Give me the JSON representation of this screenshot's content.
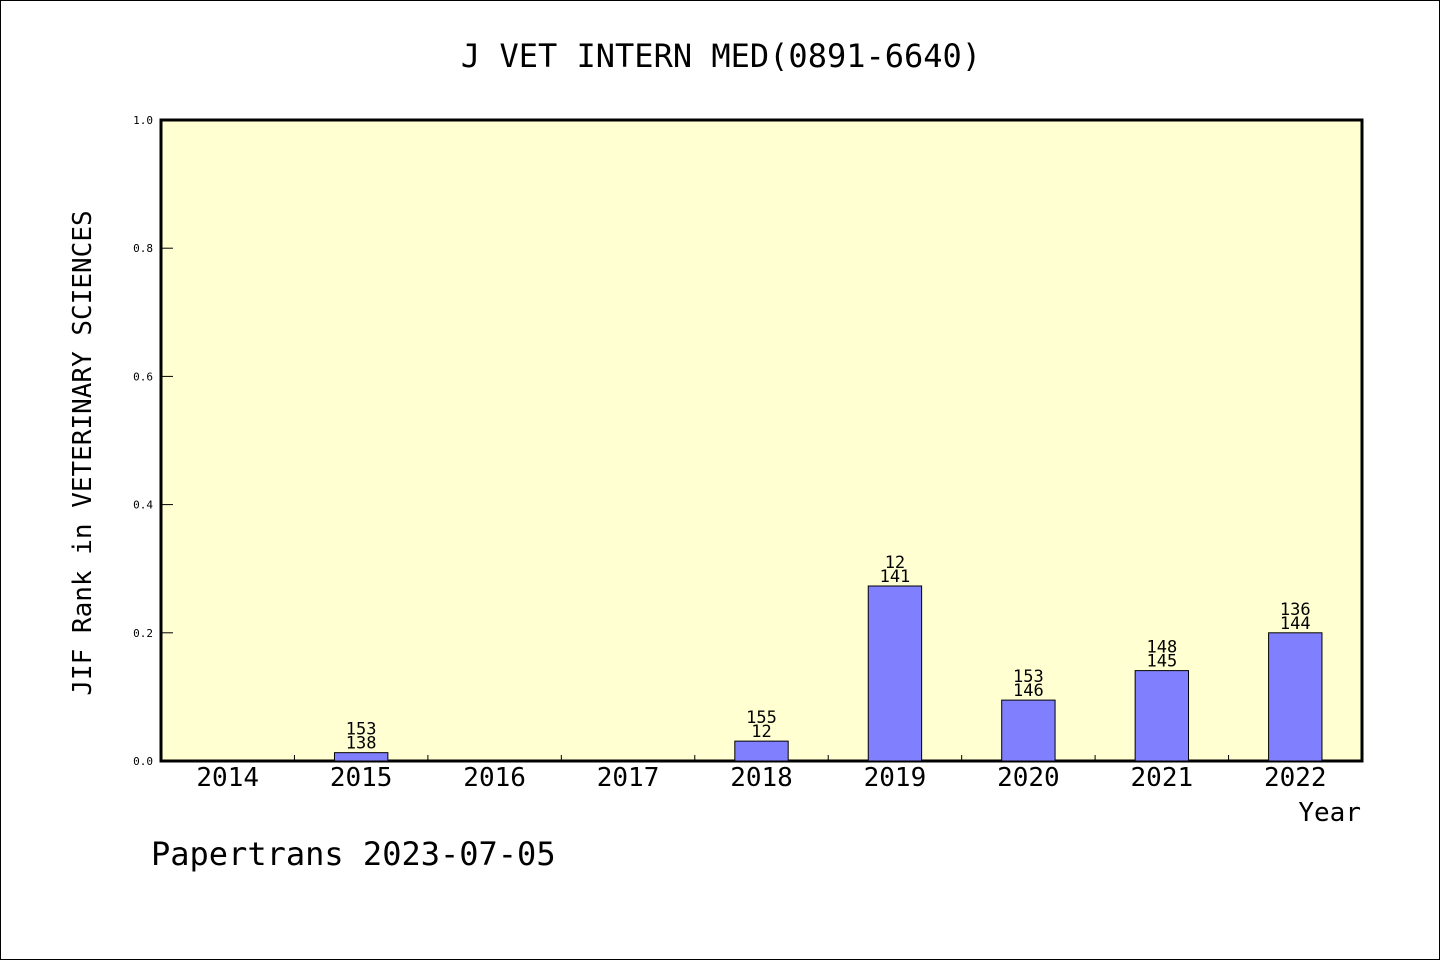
{
  "chart_data": {
    "type": "bar",
    "title": "J VET INTERN MED(0891-6640)",
    "xlabel": "Year",
    "ylabel": "JIF Rank in VETERINARY SCIENCES",
    "ylim": [
      0,
      1.0
    ],
    "yticks": [
      "0.0",
      "0.2",
      "0.4",
      "0.6",
      "0.8",
      "1.0"
    ],
    "categories": [
      "2014",
      "2015",
      "2016",
      "2017",
      "2018",
      "2019",
      "2020",
      "2021",
      "2022"
    ],
    "values": [
      0,
      0.013,
      0,
      0,
      0.031,
      0.273,
      0.095,
      0.141,
      0.2
    ],
    "labels": [
      null,
      [
        "153",
        "138"
      ],
      null,
      null,
      [
        "155",
        "12"
      ],
      [
        "12",
        "141"
      ],
      [
        "153",
        "146"
      ],
      [
        "148",
        "145"
      ],
      [
        "136",
        "144"
      ]
    ],
    "grid": false,
    "colors": {
      "plot_background": "#ffffd2",
      "bar_fill": "#8080ff",
      "bar_stroke": "#000000"
    }
  },
  "footer": {
    "text": "Papertrans 2023-07-05"
  }
}
